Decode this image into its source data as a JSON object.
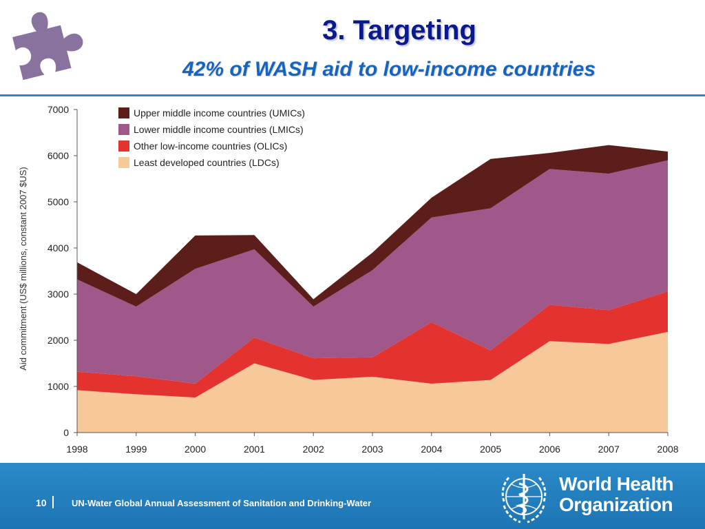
{
  "slide": {
    "title": "3. Targeting",
    "subtitle": "42% of WASH aid to low-income countries",
    "page_number": "10",
    "footer_text": "UN-Water Global Annual Assessment of Sanitation and Drinking-Water",
    "org_name_line1": "World Health",
    "org_name_line2": "Organization"
  },
  "colors": {
    "title": "#0a1a8c",
    "subtitle": "#1565c0",
    "footer_bg": "#2182c0",
    "puzzle": "#8a729f"
  },
  "icons": [
    "puzzle-piece-icon",
    "who-emblem-icon"
  ],
  "chart_data": {
    "type": "area",
    "stacked": true,
    "x": [
      "1998",
      "1999",
      "2000",
      "2001",
      "2002",
      "2003",
      "2004",
      "2005",
      "2006",
      "2007",
      "2008"
    ],
    "ylabel": "Aid commitment (US$ millions, constant 2007 $US)",
    "xlabel": "",
    "ylim": [
      0,
      7000
    ],
    "yticks": [
      0,
      1000,
      2000,
      3000,
      4000,
      5000,
      6000,
      7000
    ],
    "legend_position": "top-left",
    "grid": false,
    "series": [
      {
        "name": "Least developed countries (LDCs)",
        "color": "#f7c89a",
        "values": [
          920,
          830,
          760,
          1500,
          1140,
          1210,
          1060,
          1140,
          1980,
          1920,
          2180
        ]
      },
      {
        "name": "Other low-income countries (OLICs)",
        "color": "#e4332e",
        "values": [
          400,
          390,
          300,
          560,
          470,
          420,
          1330,
          640,
          790,
          730,
          880
        ]
      },
      {
        "name": "Lower middle income countries (LMICs)",
        "color": "#a0578a",
        "values": [
          2000,
          1510,
          2490,
          1910,
          1120,
          1890,
          2270,
          3080,
          2940,
          2960,
          2840
        ]
      },
      {
        "name": "Upper middle income countries (UMICs)",
        "color": "#5c1e1a",
        "values": [
          370,
          270,
          720,
          310,
          160,
          380,
          430,
          1070,
          350,
          620,
          190
        ]
      }
    ],
    "legend_order": [
      "Upper middle income countries (UMICs)",
      "Lower middle income countries (LMICs)",
      "Other low-income countries (OLICs)",
      "Least developed countries (LDCs)"
    ]
  }
}
